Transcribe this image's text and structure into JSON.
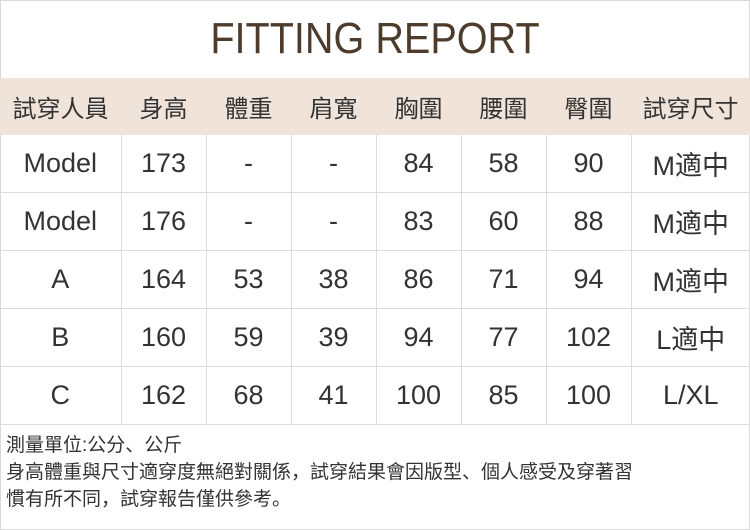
{
  "title": "FITTING REPORT",
  "table": {
    "headers": [
      "試穿人員",
      "身高",
      "體重",
      "肩寬",
      "胸圍",
      "腰圍",
      "臀圍",
      "試穿尺寸"
    ],
    "rows": [
      [
        "Model",
        "173",
        "-",
        "-",
        "84",
        "58",
        "90",
        "M適中"
      ],
      [
        "Model",
        "176",
        "-",
        "-",
        "83",
        "60",
        "88",
        "M適中"
      ],
      [
        "A",
        "164",
        "53",
        "38",
        "86",
        "71",
        "94",
        "M適中"
      ],
      [
        "B",
        "160",
        "59",
        "39",
        "94",
        "77",
        "102",
        "L適中"
      ],
      [
        "C",
        "162",
        "68",
        "41",
        "100",
        "85",
        "100",
        "L/XL"
      ]
    ]
  },
  "notes": [
    "測量單位:公分、公斤",
    "身高體重與尺寸適穿度無絕對關係，試穿結果會因版型、個人感受及穿著習",
    "慣有所不同，試穿報告僅供參考。"
  ],
  "colors": {
    "title": "#4d3b2c",
    "header_bg": "#efe3da",
    "grid": "#dcdcdc"
  }
}
